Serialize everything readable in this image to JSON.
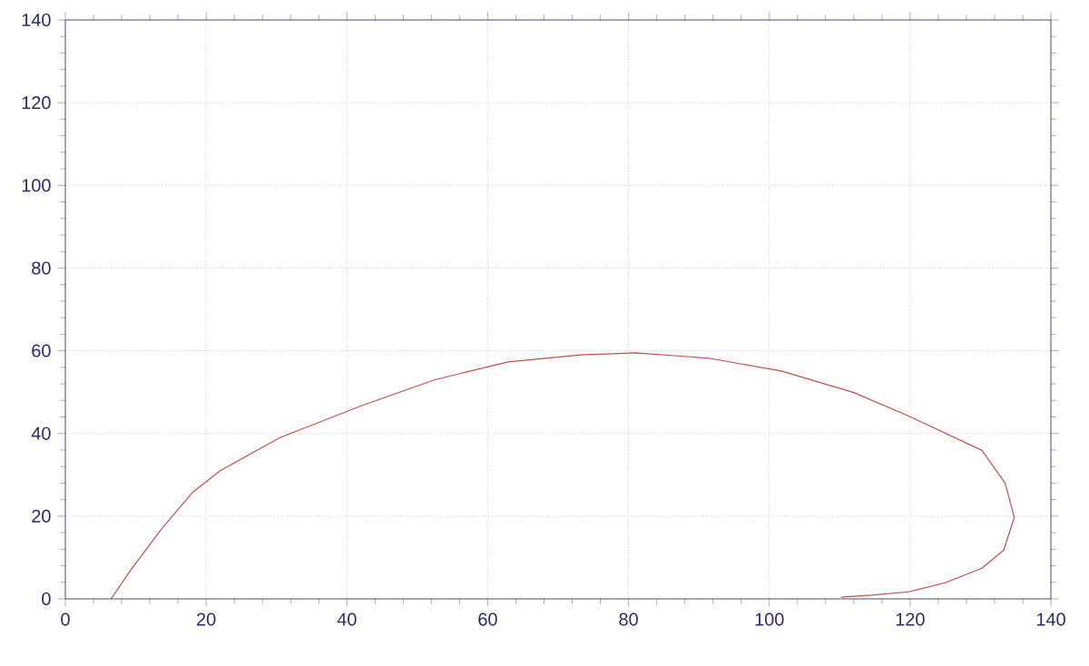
{
  "chart_data": {
    "type": "line",
    "color": "#c0504d",
    "xlim": [
      0,
      140
    ],
    "ylim": [
      0,
      140
    ],
    "xticks": [
      0,
      20,
      40,
      60,
      80,
      100,
      120,
      140
    ],
    "yticks": [
      0,
      20,
      40,
      60,
      80,
      100,
      120,
      140
    ],
    "grid": true,
    "x": [
      6.5,
      9.3,
      13.7,
      18.1,
      22,
      30.5,
      42.2,
      52.5,
      62.9,
      73.2,
      81,
      91.4,
      101.7,
      112,
      119.8,
      130.2,
      133.5,
      134.8,
      133.3,
      130.2,
      125,
      119.8,
      114.6,
      110.2
    ],
    "values": [
      0,
      7,
      17,
      25.8,
      31,
      39,
      46.8,
      53,
      57.3,
      59,
      59.5,
      58.2,
      55.1,
      49.9,
      44.2,
      35.9,
      28,
      19.7,
      11.8,
      7.4,
      3.9,
      1.7,
      0.9,
      0.4
    ]
  }
}
